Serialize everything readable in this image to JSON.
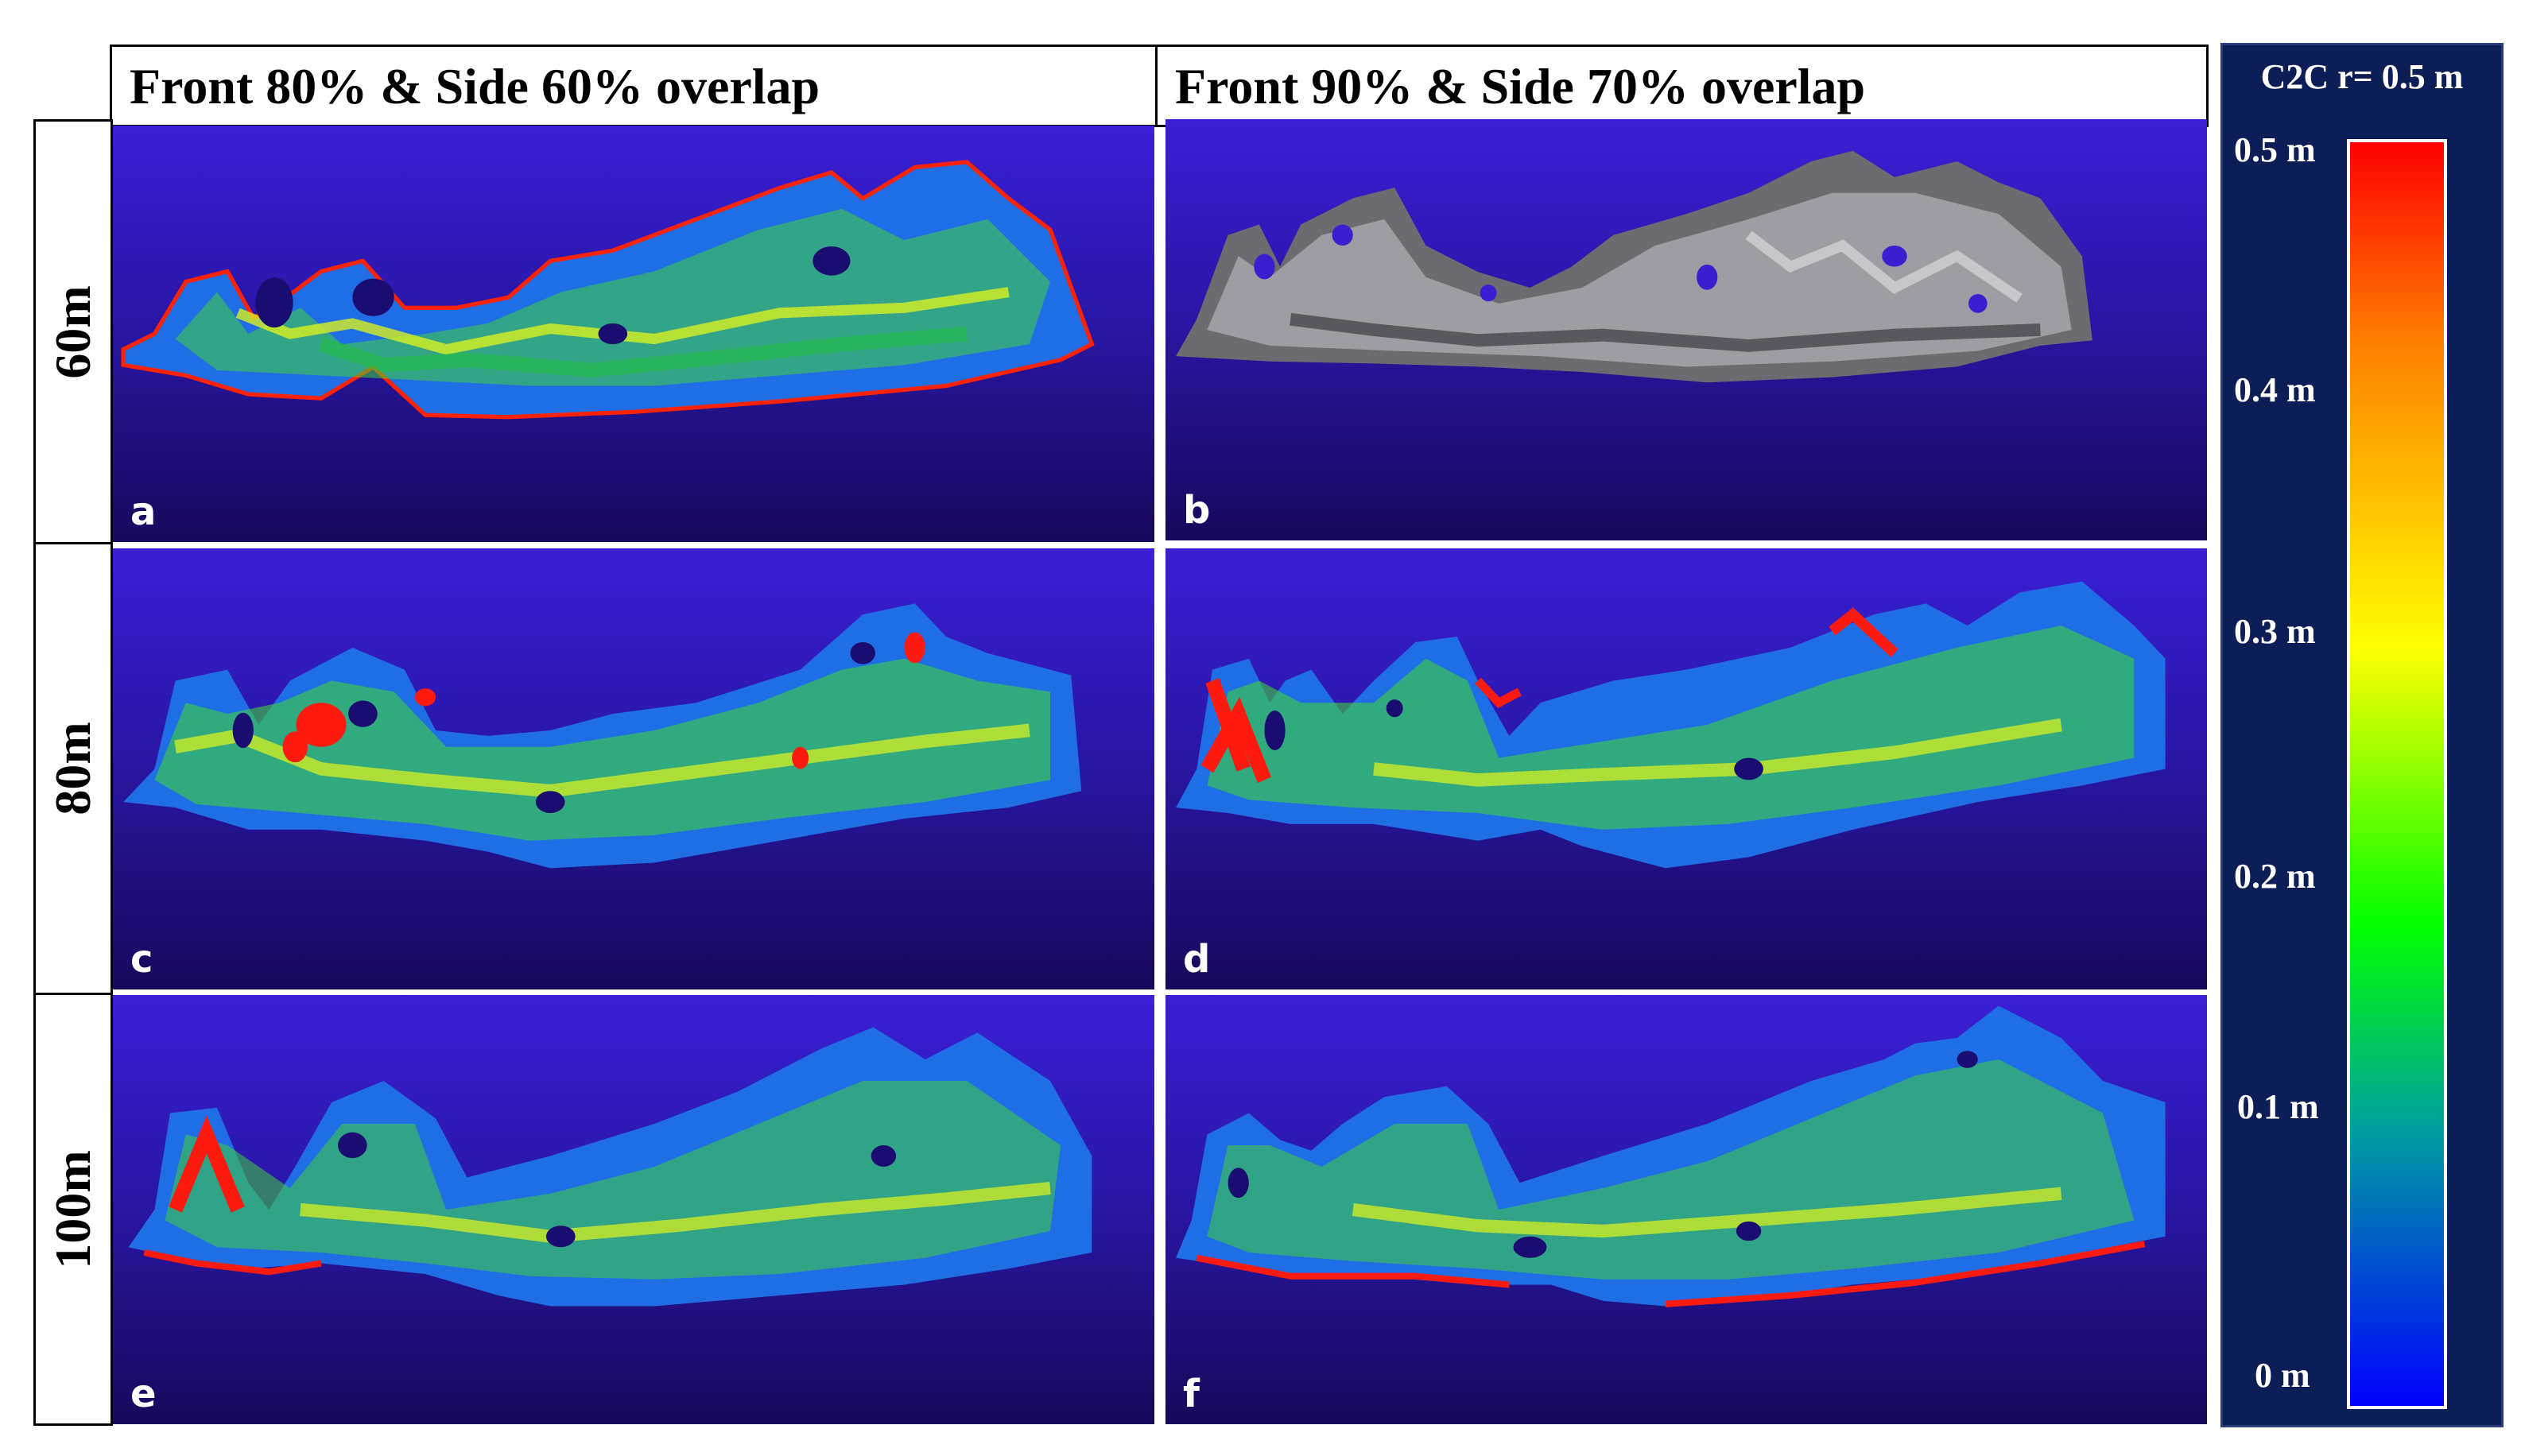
{
  "columns": [
    "Front 80% &  Side 60% overlap",
    "Front 90% &  Side 70% overlap"
  ],
  "rows": [
    "60m",
    "80m",
    "100m"
  ],
  "panels": [
    "a",
    "b",
    "c",
    "d",
    "e",
    "f"
  ],
  "legend": {
    "title": "C2C r= 0.5 m",
    "ticks": [
      "0.5 m",
      "0.4 m",
      "0.3 m",
      "0.2 m",
      "0.1 m",
      "0 m"
    ],
    "colors": [
      "#ff0000",
      "#ff8000",
      "#ffff00",
      "#00ff00",
      "#00a0a0",
      "#0000ff"
    ]
  }
}
